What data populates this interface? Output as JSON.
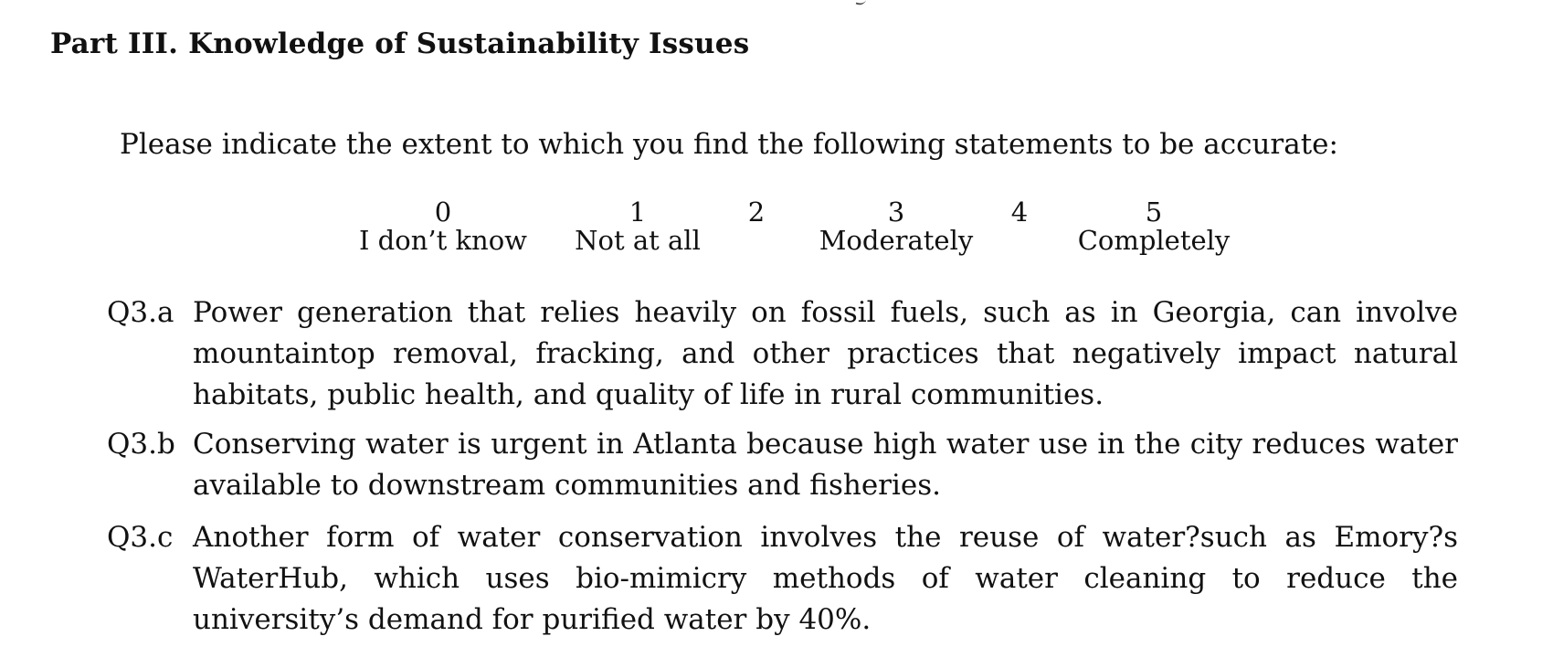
{
  "section": {
    "title": "Part III. Knowledge of Sustainability Issues",
    "instruction": "Please indicate the extent to which you find the following statements to be accurate:"
  },
  "scale": [
    {
      "number": "0",
      "label": "I don’t know"
    },
    {
      "number": "1",
      "label": "Not at all"
    },
    {
      "number": "2",
      "label": ""
    },
    {
      "number": "3",
      "label": "Moderately"
    },
    {
      "number": "4",
      "label": ""
    },
    {
      "number": "5",
      "label": "Completely"
    }
  ],
  "questions": [
    {
      "id": "Q3.a",
      "text": "Power generation that relies heavily on fossil fuels, such as in Georgia, can involve mountaintop removal, fracking, and other practices that negatively impact natural habitats, public health, and quality of life in rural communities."
    },
    {
      "id": "Q3.b",
      "text": "Conserving water is urgent in Atlanta because high water use in the city reduces water available to downstream communities and fisheries."
    },
    {
      "id": "Q3.c",
      "text": "Another form of water conservation involves the reuse of water?such as Emory?s WaterHub, which uses bio-mimicry methods of water cleaning to reduce the university’s demand for purified water by 40%."
    }
  ]
}
